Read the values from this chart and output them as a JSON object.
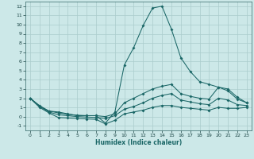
{
  "xlabel": "Humidex (Indice chaleur)",
  "xlim": [
    -0.5,
    23.5
  ],
  "ylim": [
    -1.5,
    12.5
  ],
  "xticks": [
    0,
    1,
    2,
    3,
    4,
    5,
    6,
    7,
    8,
    9,
    10,
    11,
    12,
    13,
    14,
    15,
    16,
    17,
    18,
    19,
    20,
    21,
    22,
    23
  ],
  "yticks": [
    -1,
    0,
    1,
    2,
    3,
    4,
    5,
    6,
    7,
    8,
    9,
    10,
    11,
    12
  ],
  "bg_color": "#cce8e8",
  "grid_color": "#aacccc",
  "line_color": "#1a6666",
  "line1_x": [
    0,
    1,
    2,
    3,
    4,
    5,
    6,
    7,
    8,
    9,
    10,
    11,
    12,
    13,
    14,
    15,
    16,
    17,
    18,
    19,
    20,
    21,
    22,
    23
  ],
  "line1_y": [
    2.0,
    1.2,
    0.6,
    0.5,
    0.3,
    0.1,
    0.1,
    0.1,
    -0.7,
    0.5,
    5.6,
    7.5,
    9.9,
    11.8,
    12.0,
    9.5,
    6.4,
    4.9,
    3.8,
    3.5,
    3.2,
    3.0,
    2.1,
    1.5
  ],
  "line2_x": [
    0,
    1,
    2,
    3,
    4,
    5,
    6,
    7,
    8,
    9,
    10,
    11,
    12,
    13,
    14,
    15,
    16,
    17,
    18,
    19,
    20,
    21,
    22,
    23
  ],
  "line2_y": [
    2.0,
    1.1,
    0.6,
    0.4,
    0.25,
    0.15,
    0.1,
    0.1,
    0.0,
    0.3,
    1.5,
    2.0,
    2.5,
    3.0,
    3.3,
    3.5,
    2.5,
    2.2,
    2.0,
    1.9,
    3.2,
    2.8,
    1.9,
    1.5
  ],
  "line3_x": [
    0,
    1,
    2,
    3,
    4,
    5,
    6,
    7,
    8,
    9,
    10,
    11,
    12,
    13,
    14,
    15,
    16,
    17,
    18,
    19,
    20,
    21,
    22,
    23
  ],
  "line3_y": [
    2.0,
    1.1,
    0.5,
    0.2,
    0.1,
    0.0,
    -0.05,
    -0.1,
    -0.2,
    0.1,
    0.8,
    1.1,
    1.5,
    2.0,
    2.3,
    2.5,
    1.8,
    1.6,
    1.4,
    1.3,
    2.0,
    1.8,
    1.3,
    1.2
  ],
  "line4_x": [
    0,
    1,
    2,
    3,
    4,
    5,
    6,
    7,
    8,
    9,
    10,
    11,
    12,
    13,
    14,
    15,
    16,
    17,
    18,
    19,
    20,
    21,
    22,
    23
  ],
  "line4_y": [
    2.0,
    1.0,
    0.4,
    -0.1,
    -0.15,
    -0.2,
    -0.25,
    -0.3,
    -0.8,
    -0.4,
    0.3,
    0.5,
    0.7,
    1.0,
    1.2,
    1.2,
    1.0,
    0.9,
    0.8,
    0.7,
    1.0,
    0.9,
    0.9,
    1.0
  ]
}
